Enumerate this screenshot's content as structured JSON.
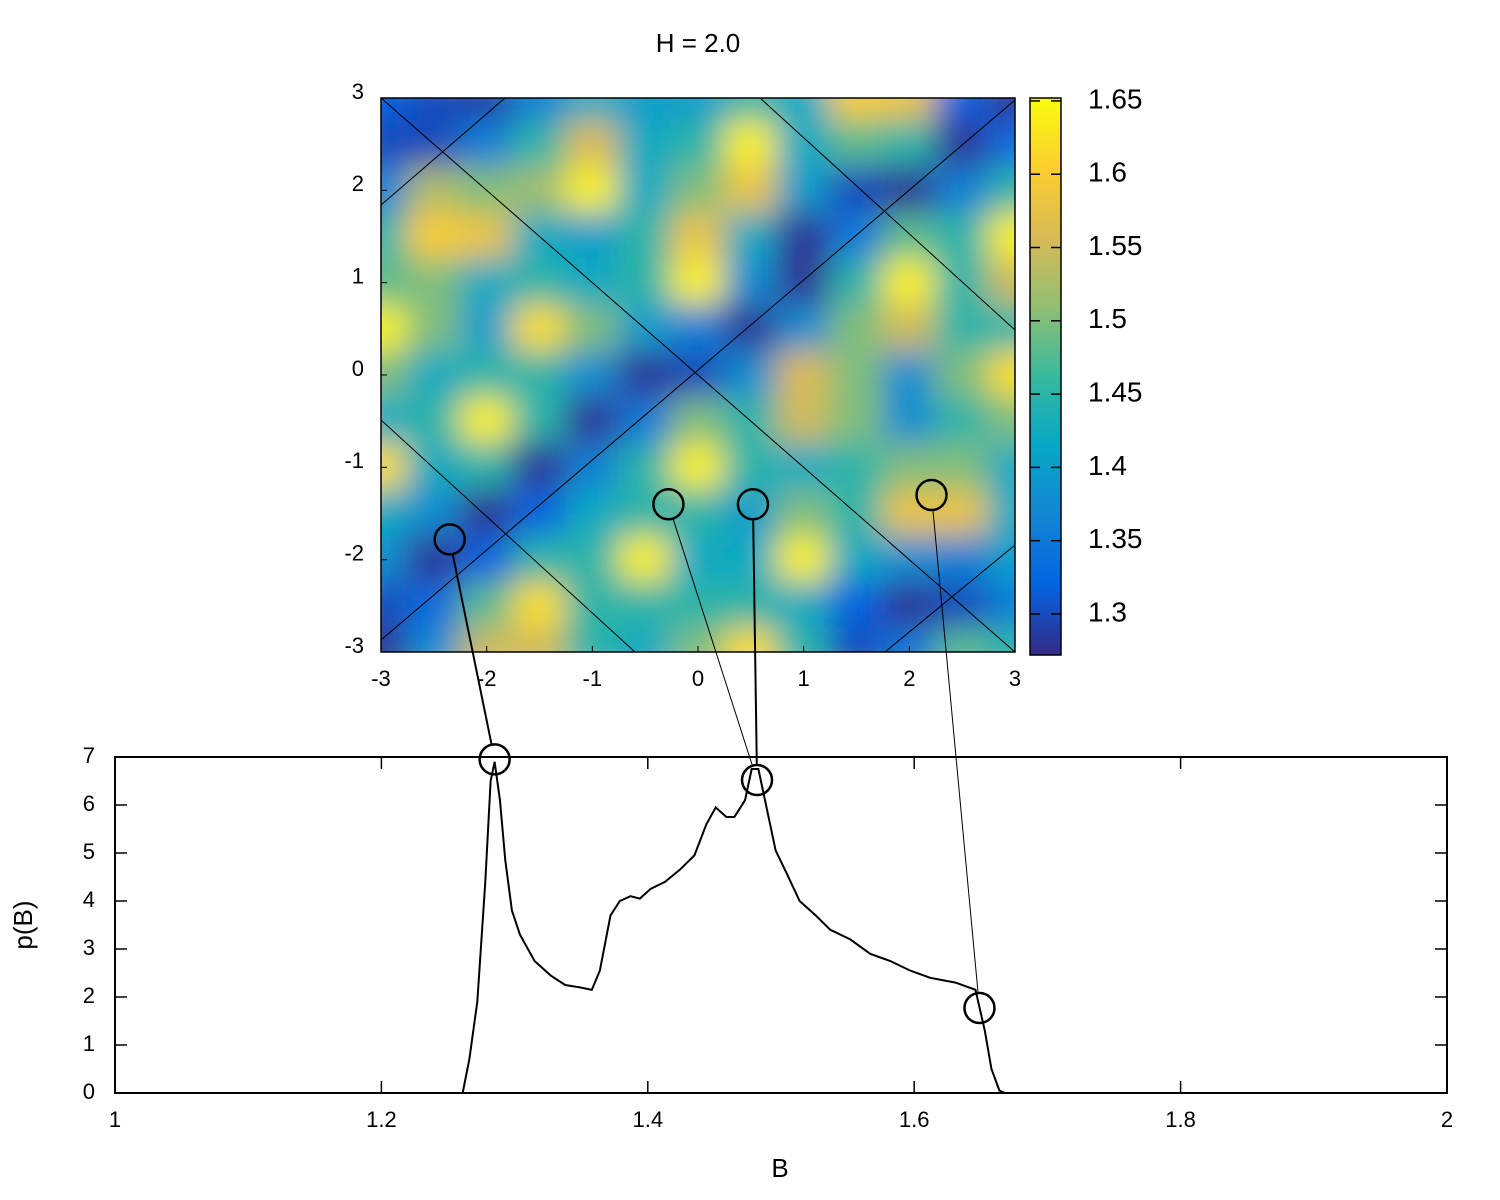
{
  "chart_data": [
    {
      "type": "heatmap",
      "title": "H = 2.0",
      "x": [
        -3,
        -2.5,
        -2,
        -1.5,
        -1,
        -0.5,
        0,
        0.5,
        1,
        1.5,
        2,
        2.5,
        3
      ],
      "y": [
        3,
        2.5,
        2,
        1.5,
        1,
        0.5,
        0,
        -0.5,
        -1,
        -1.5,
        -2,
        -2.5,
        -3
      ],
      "z": [
        [
          1.32,
          1.3,
          1.29,
          1.36,
          1.42,
          1.4,
          1.4,
          1.45,
          1.42,
          1.6,
          1.58,
          1.32,
          1.28
        ],
        [
          1.3,
          1.3,
          1.36,
          1.45,
          1.56,
          1.42,
          1.45,
          1.64,
          1.42,
          1.48,
          1.45,
          1.28,
          1.33
        ],
        [
          1.36,
          1.53,
          1.5,
          1.52,
          1.64,
          1.42,
          1.5,
          1.58,
          1.4,
          1.3,
          1.28,
          1.36,
          1.45
        ],
        [
          1.45,
          1.6,
          1.58,
          1.42,
          1.4,
          1.45,
          1.58,
          1.42,
          1.28,
          1.35,
          1.48,
          1.45,
          1.64
        ],
        [
          1.48,
          1.5,
          1.42,
          1.45,
          1.42,
          1.45,
          1.64,
          1.38,
          1.28,
          1.45,
          1.64,
          1.45,
          1.55
        ],
        [
          1.64,
          1.5,
          1.4,
          1.62,
          1.5,
          1.4,
          1.36,
          1.28,
          1.38,
          1.5,
          1.55,
          1.45,
          1.45
        ],
        [
          1.5,
          1.42,
          1.45,
          1.45,
          1.38,
          1.28,
          1.3,
          1.38,
          1.56,
          1.5,
          1.38,
          1.5,
          1.62
        ],
        [
          1.42,
          1.45,
          1.64,
          1.45,
          1.28,
          1.35,
          1.5,
          1.45,
          1.55,
          1.5,
          1.38,
          1.45,
          1.5
        ],
        [
          1.62,
          1.42,
          1.45,
          1.28,
          1.36,
          1.45,
          1.64,
          1.45,
          1.42,
          1.45,
          1.5,
          1.5,
          1.42
        ],
        [
          1.42,
          1.38,
          1.28,
          1.32,
          1.42,
          1.45,
          1.45,
          1.4,
          1.5,
          1.45,
          1.58,
          1.58,
          1.42
        ],
        [
          1.38,
          1.28,
          1.32,
          1.45,
          1.45,
          1.64,
          1.42,
          1.42,
          1.64,
          1.42,
          1.38,
          1.36,
          1.4
        ],
        [
          1.3,
          1.33,
          1.48,
          1.62,
          1.45,
          1.45,
          1.45,
          1.45,
          1.42,
          1.32,
          1.28,
          1.3,
          1.36
        ],
        [
          1.28,
          1.38,
          1.55,
          1.55,
          1.45,
          1.42,
          1.5,
          1.62,
          1.45,
          1.3,
          1.35,
          1.48,
          1.45
        ]
      ],
      "xlim": [
        -3,
        3
      ],
      "ylim": [
        -3,
        3
      ],
      "xticks": [
        -3,
        -2,
        -1,
        0,
        1,
        2,
        3
      ],
      "yticks": [
        -3,
        -2,
        -1,
        0,
        1,
        2,
        3
      ],
      "clim": [
        1.272,
        1.652
      ],
      "cticks": [
        1.3,
        1.35,
        1.4,
        1.45,
        1.5,
        1.55,
        1.6,
        1.65
      ],
      "colormap": [
        "#352a87",
        "#0363e1",
        "#1485d4",
        "#06a7c6",
        "#38b99e",
        "#92bf73",
        "#d9ba56",
        "#fcce2e",
        "#f9fb0e"
      ],
      "markers": {
        "x": [
          -2.35,
          -0.28,
          0.52,
          2.21
        ],
        "y": [
          -1.78,
          -1.4,
          -1.4,
          -1.3
        ]
      }
    },
    {
      "type": "line",
      "xlabel": "B",
      "ylabel": "p(B)",
      "color": "#000000",
      "x": [
        1,
        1.261,
        1.266,
        1.272,
        1.278,
        1.282,
        1.285,
        1.289,
        1.293,
        1.298,
        1.304,
        1.315,
        1.327,
        1.338,
        1.349,
        1.358,
        1.364,
        1.372,
        1.379,
        1.387,
        1.394,
        1.402,
        1.413,
        1.424,
        1.435,
        1.444,
        1.451,
        1.459,
        1.465,
        1.473,
        1.478,
        1.483,
        1.488,
        1.496,
        1.503,
        1.514,
        1.526,
        1.537,
        1.552,
        1.567,
        1.582,
        1.597,
        1.612,
        1.631,
        1.646,
        1.653,
        1.658,
        1.664,
        1.668,
        2
      ],
      "values": [
        0,
        0,
        0.7,
        1.9,
        4.4,
        6.5,
        6.9,
        6.1,
        4.85,
        3.8,
        3.3,
        2.75,
        2.45,
        2.25,
        2.2,
        2.15,
        2.55,
        3.7,
        4.0,
        4.1,
        4.05,
        4.25,
        4.4,
        4.65,
        4.95,
        5.6,
        5.95,
        5.75,
        5.75,
        6.1,
        6.75,
        6.75,
        6.1,
        5.05,
        4.65,
        4.0,
        3.7,
        3.4,
        3.2,
        2.9,
        2.75,
        2.55,
        2.4,
        2.3,
        2.15,
        1.3,
        0.5,
        0.05,
        0,
        0
      ],
      "xlim": [
        1,
        2
      ],
      "ylim": [
        0,
        7
      ],
      "xticks": [
        1,
        1.2,
        1.4,
        1.6,
        1.8,
        2
      ],
      "yticks": [
        0,
        1,
        2,
        3,
        4,
        5,
        6,
        7
      ],
      "markers": {
        "x": [
          1.285,
          1.482,
          1.649
        ],
        "y": [
          6.95,
          6.52,
          1.77
        ]
      }
    }
  ]
}
